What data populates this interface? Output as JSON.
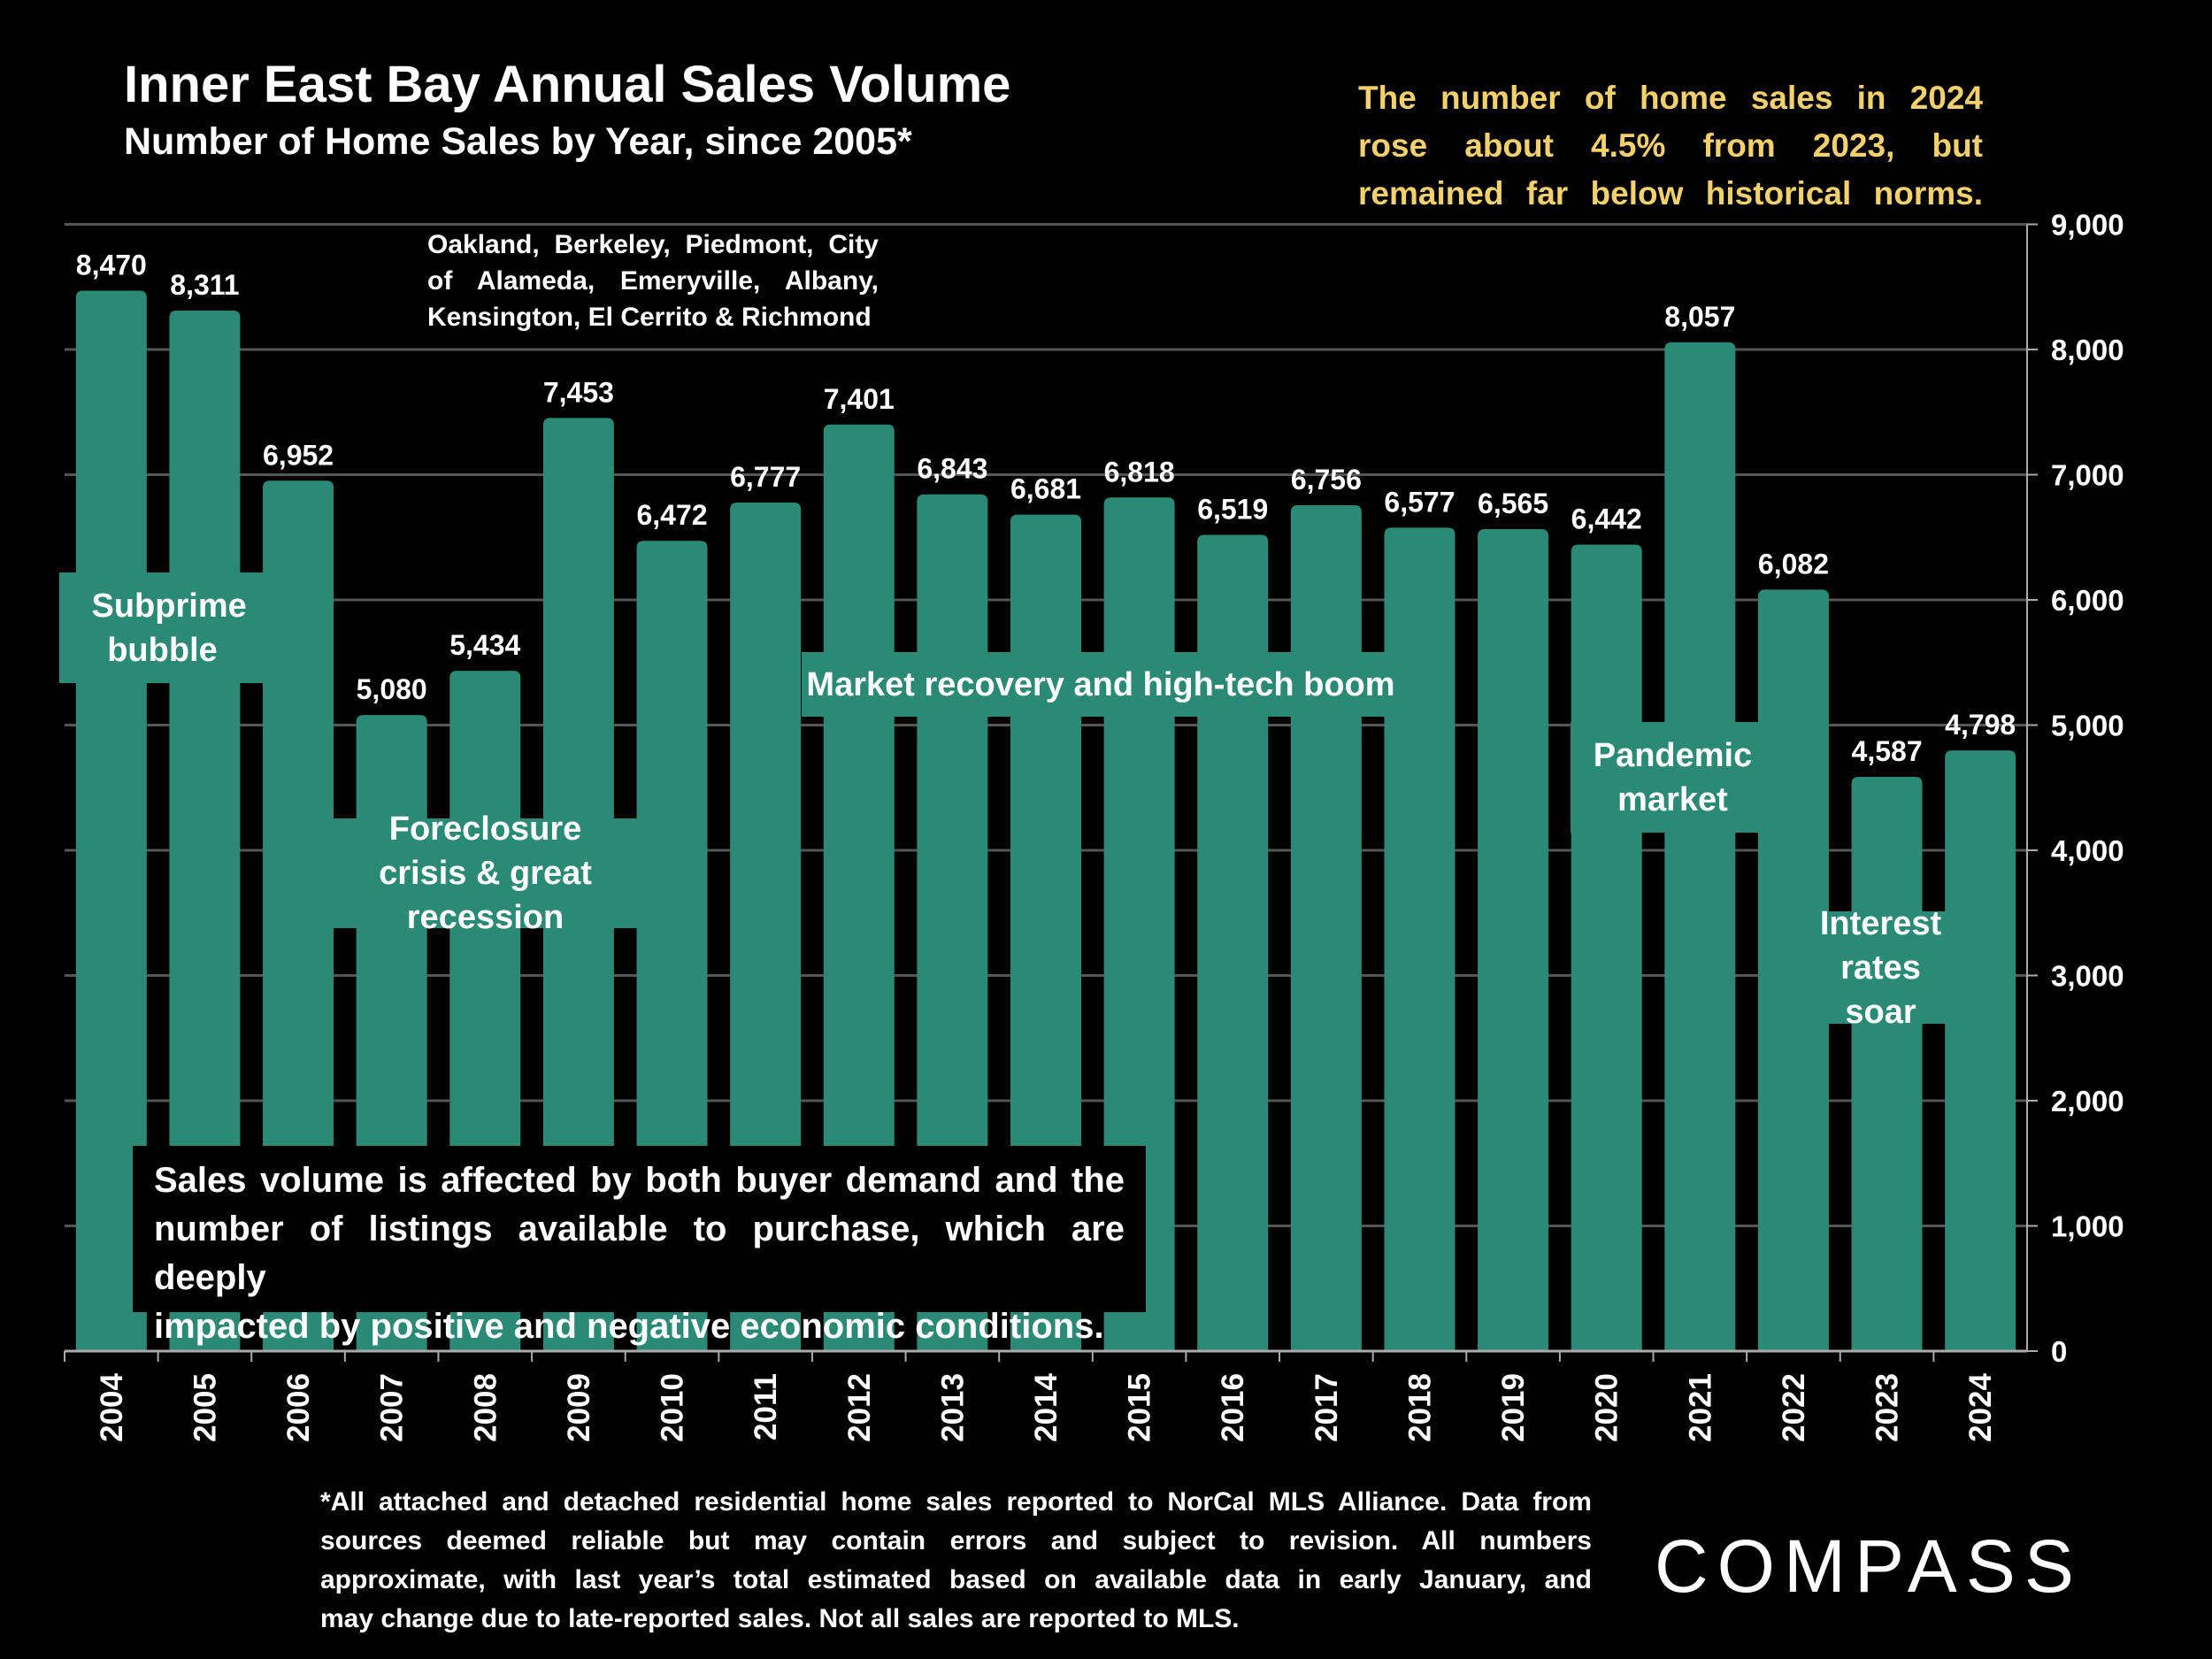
{
  "header": {
    "title": "Inner East Bay Annual Sales Volume",
    "subtitle": "Number of Home Sales by Year, since 2005*",
    "callout_lines": [
      "The number of home sales in 2024",
      "rose about 4.5% from 2023, but",
      "remained far below historical norms."
    ]
  },
  "cities_lines": [
    "Oakland, Berkeley, Piedmont, City",
    "of Alameda, Emeryville, Albany,",
    "Kensington, El Cerrito & Richmond"
  ],
  "annotations": {
    "subprime": "Subprime bubble",
    "foreclosure": "Foreclosure crisis & great recession",
    "recovery": "Market recovery and high-tech boom",
    "pandemic": "Pandemic market",
    "rates": "Interest rates soar"
  },
  "note_lines": [
    "Sales volume is affected by both buyer demand and the",
    "number of listings available to purchase, which are deeply",
    "impacted by positive and negative economic conditions."
  ],
  "footnote_lines": [
    "*All attached and detached residential home sales reported to NorCal MLS Alliance. Data from",
    "sources deemed reliable but may contain errors and subject to revision. All numbers",
    "approximate, with last year’s total estimated based on available data in early January, and",
    "may change due to late-reported sales. Not all sales are reported to MLS."
  ],
  "logo": "COMPASS",
  "colors": {
    "bar": "#2a8a75",
    "callout": "#f2d06b",
    "background": "#000000",
    "grid": "#555555"
  },
  "chart_data": {
    "type": "bar",
    "categories": [
      "2004",
      "2005",
      "2006",
      "2007",
      "2008",
      "2009",
      "2010",
      "2011",
      "2012",
      "2013",
      "2014",
      "2015",
      "2016",
      "2017",
      "2018",
      "2019",
      "2020",
      "2021",
      "2022",
      "2023",
      "2024"
    ],
    "values": [
      8470,
      8311,
      6952,
      5080,
      5434,
      7453,
      6472,
      6777,
      7401,
      6843,
      6681,
      6818,
      6519,
      6756,
      6577,
      6565,
      6442,
      8057,
      6082,
      4587,
      4798
    ],
    "data_labels": [
      "8,470",
      "8,311",
      "6,952",
      "5,080",
      "5,434",
      "7,453",
      "6,472",
      "6,777",
      "7,401",
      "6,843",
      "6,681",
      "6,818",
      "6,519",
      "6,756",
      "6,577",
      "6,565",
      "6,442",
      "8,057",
      "6,082",
      "4,587",
      "4,798"
    ],
    "ylim": [
      0,
      9000
    ],
    "yticks": [
      "0",
      "1,000",
      "2,000",
      "3,000",
      "4,000",
      "5,000",
      "6,000",
      "7,000",
      "8,000",
      "9,000"
    ],
    "y_axis_position": "right",
    "grid": true,
    "title": "Inner East Bay Annual Sales Volume",
    "subtitle": "Number of Home Sales by Year, since 2005*"
  }
}
